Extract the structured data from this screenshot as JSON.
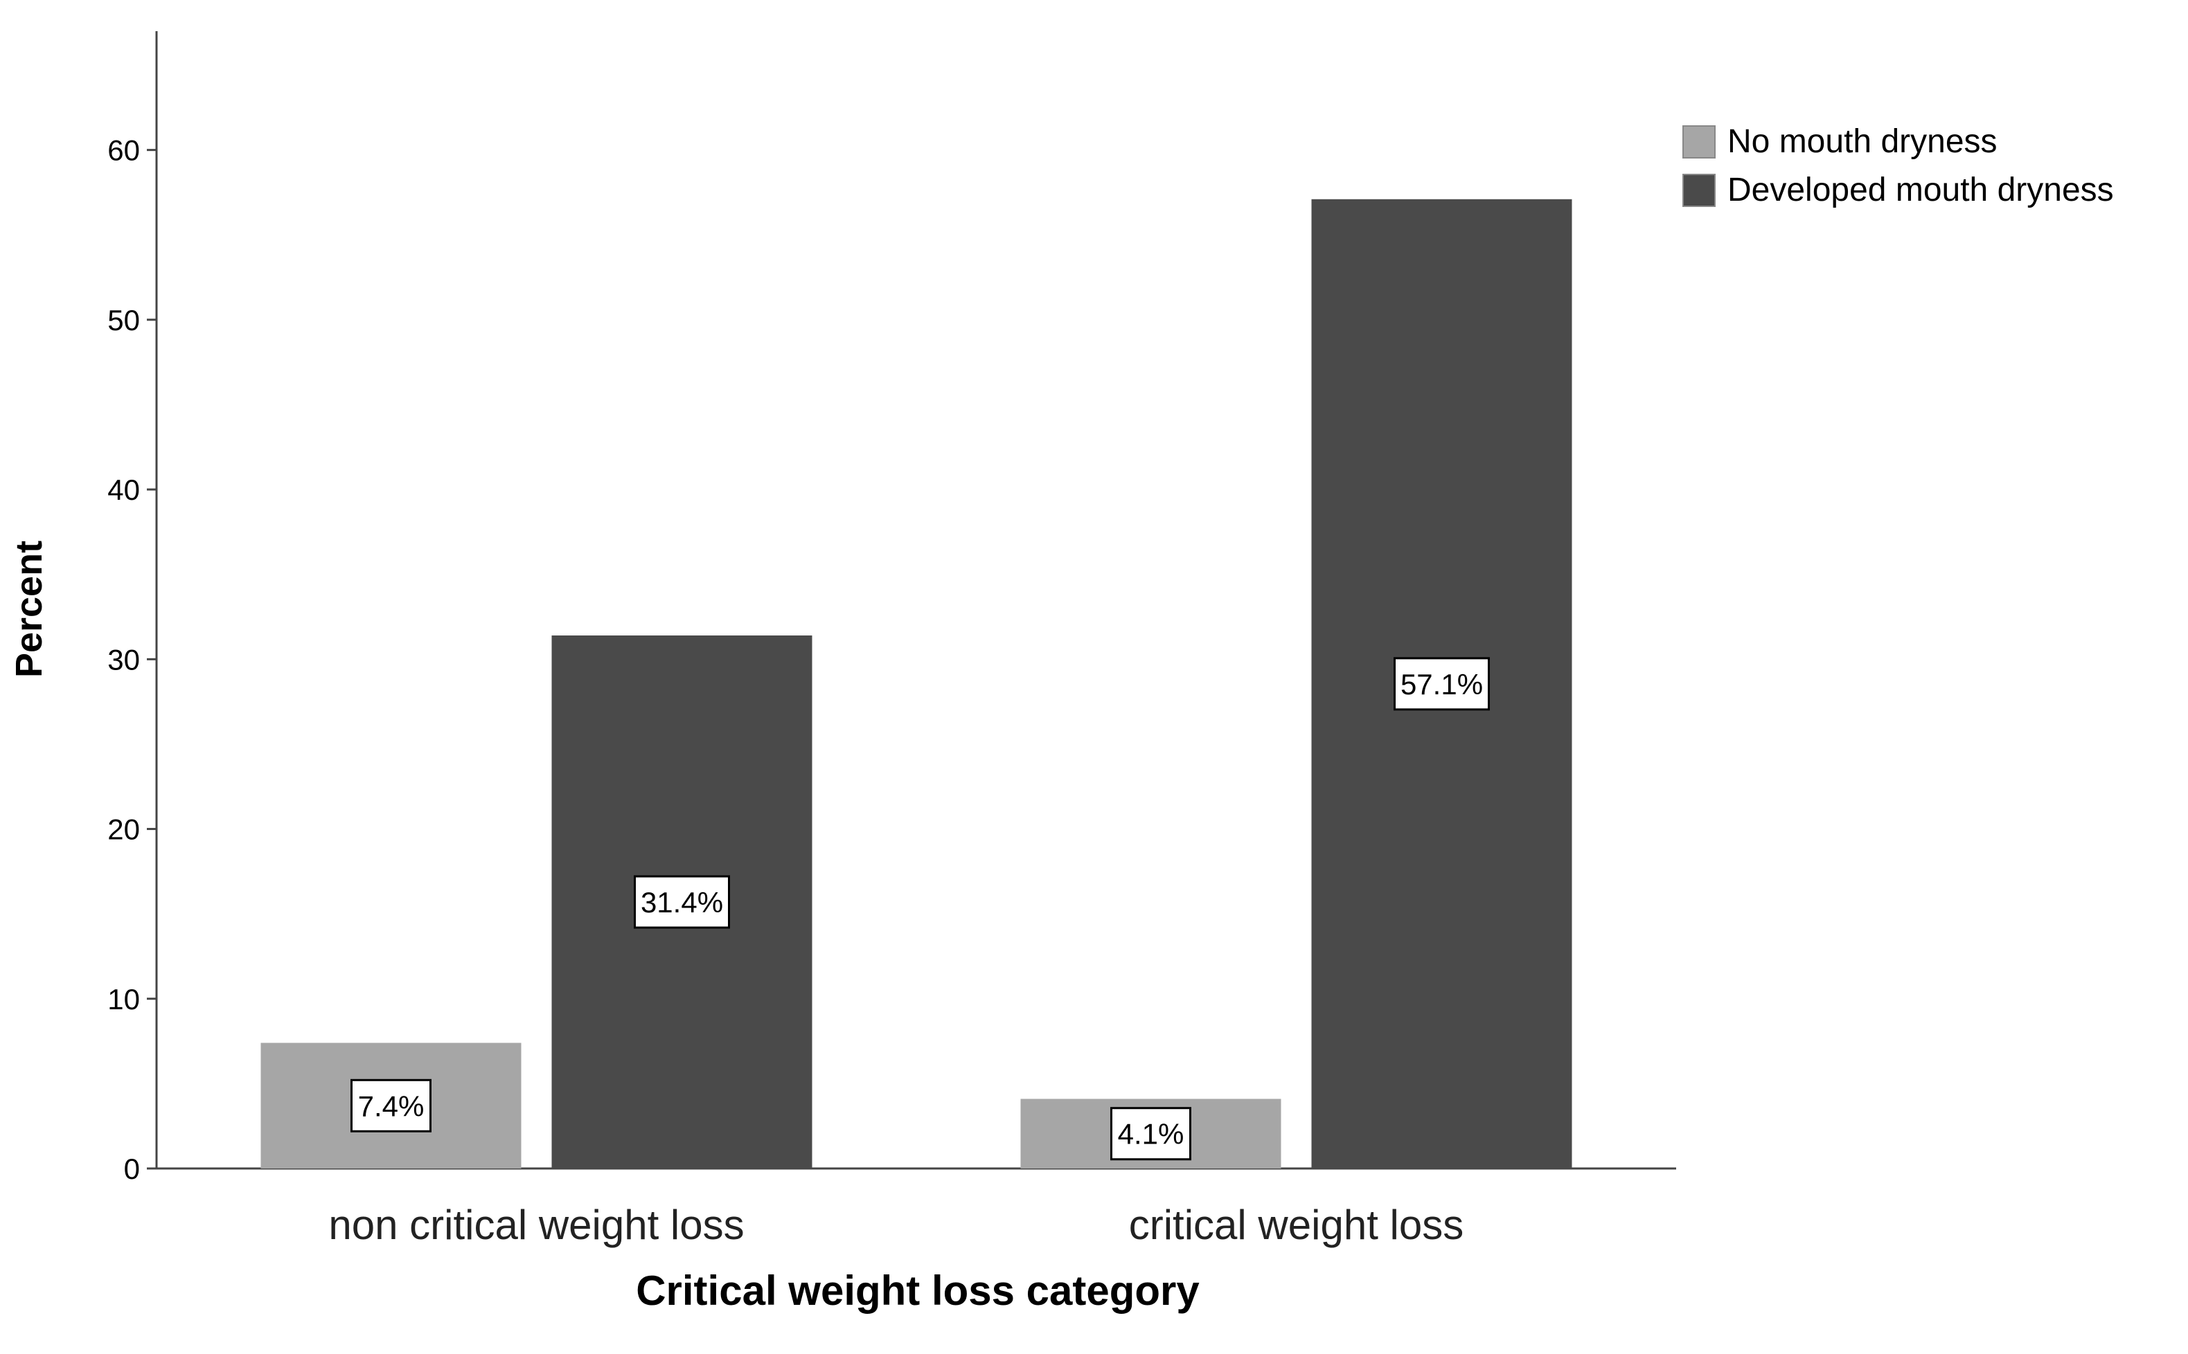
{
  "chart_data": {
    "type": "bar",
    "title": "",
    "xlabel": "Critical weight loss category",
    "ylabel": "Percent",
    "categories": [
      "non critical weight loss",
      "critical weight loss"
    ],
    "series": [
      {
        "name": "No mouth dryness",
        "values": [
          7.4,
          4.1
        ],
        "labels": [
          "7.4%",
          "4.1%"
        ],
        "color": "#a6a6a6"
      },
      {
        "name": "Developed mouth dryness",
        "values": [
          31.4,
          57.1
        ],
        "labels": [
          "31.4%",
          "57.1%"
        ],
        "color": "#4a4a4a"
      }
    ],
    "ylim": [
      0,
      67
    ],
    "yticks": [
      0,
      10,
      20,
      30,
      40,
      50,
      60
    ],
    "grid": false,
    "legend_position": "top-right"
  }
}
